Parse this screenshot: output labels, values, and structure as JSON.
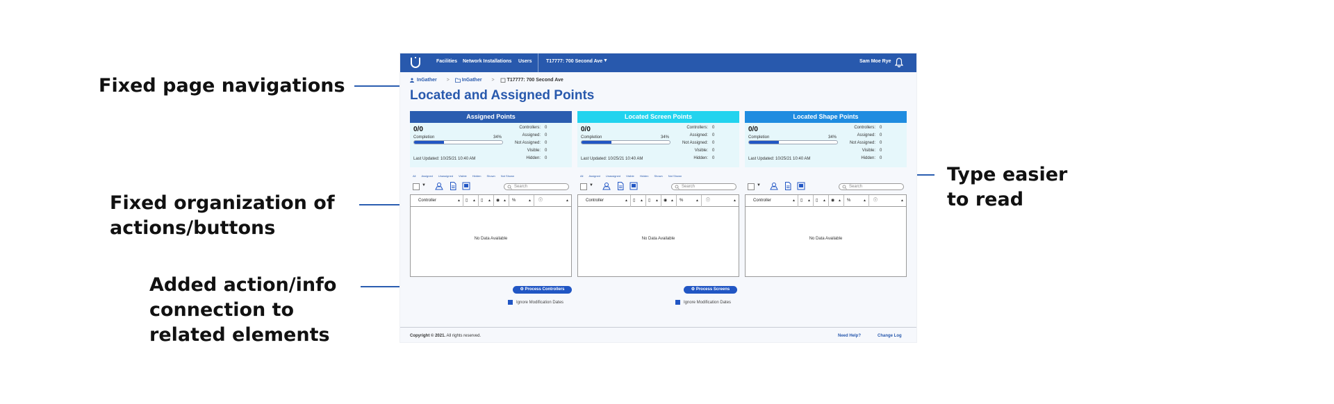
{
  "annotations": {
    "fixed_nav": "Fixed page navigations",
    "org_line1": "Fixed organization of",
    "org_line2": "actions/buttons",
    "added_line1": "Added action/info",
    "added_line2": "connection to",
    "added_line3": "related elements",
    "type_line1": "Type easier",
    "type_line2": "to read"
  },
  "topbar": {
    "nav": [
      "Facilities",
      "Network Installations",
      "Users"
    ],
    "facility": "T17777: 700 Second Ave",
    "user": "Sam Moe Rye"
  },
  "breadcrumb": {
    "items": [
      "InGather",
      "InGather",
      "T17777: 700 Second Ave"
    ],
    "separator": ">"
  },
  "page_title": "Located and Assigned Points",
  "panels": [
    {
      "title": "Assigned Points",
      "header_color": "#2a5db0",
      "ratio": "0/0",
      "completion_label": "Completion",
      "completion_pct": "34%",
      "completion_value": 34,
      "updated": "Last Updated: 10/25/21 10:40 AM",
      "stats": [
        {
          "label": "Controllers:",
          "value": "0"
        },
        {
          "label": "Assigned:",
          "value": "0"
        },
        {
          "label": "Not Assigned:",
          "value": "0"
        },
        {
          "label": "Visible:",
          "value": "0"
        },
        {
          "label": "Hidden:",
          "value": "0"
        }
      ],
      "process_button": "Process Controllers",
      "ignore_label": "Ignore Modification Dates"
    },
    {
      "title": "Located Screen Points",
      "header_color": "#22d3ee",
      "ratio": "0/0",
      "completion_label": "Completion",
      "completion_pct": "34%",
      "completion_value": 34,
      "updated": "Last Updated: 10/25/21 10:40 AM",
      "stats": [
        {
          "label": "Controllers:",
          "value": "0"
        },
        {
          "label": "Assigned:",
          "value": "0"
        },
        {
          "label": "Not Assigned:",
          "value": "0"
        },
        {
          "label": "Visible:",
          "value": "0"
        },
        {
          "label": "Hidden:",
          "value": "0"
        }
      ],
      "process_button": "Process Screens",
      "ignore_label": "Ignore Modification Dates"
    },
    {
      "title": "Located Shape Points",
      "header_color": "#1f8ce0",
      "ratio": "0/0",
      "completion_label": "Completion",
      "completion_pct": "34%",
      "completion_value": 34,
      "updated": "Last Updated: 10/25/21 10:40 AM",
      "stats": [
        {
          "label": "Controllers:",
          "value": "0"
        },
        {
          "label": "Assigned:",
          "value": "0"
        },
        {
          "label": "Not Assigned:",
          "value": "0"
        },
        {
          "label": "Visible:",
          "value": "0"
        },
        {
          "label": "Hidden:",
          "value": "0"
        }
      ]
    }
  ],
  "filters": [
    "All",
    "Assigned",
    "Unassigned",
    "Visible",
    "Hidden",
    "Shown",
    "Not Shown"
  ],
  "search_placeholder": "Search",
  "grid": {
    "controller_header": "Controller",
    "pct_header": "%",
    "empty_text": "No Data Available"
  },
  "footer": {
    "copyright": "Copyright © 2021.",
    "rights": "All rights reserved.",
    "help": "Need Help?",
    "changelog": "Change Log"
  },
  "colors": {
    "brand": "#2859ad",
    "accent": "#2156c4",
    "annotation_line": "#2a5db0"
  }
}
